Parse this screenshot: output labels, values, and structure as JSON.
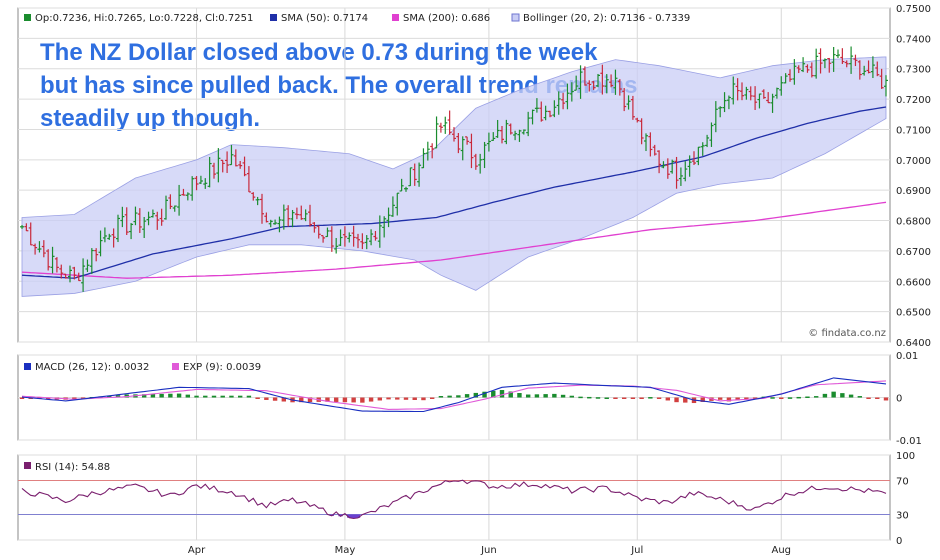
{
  "title": "The NZ Dollar closed above 0.73 during the week but has since pulled back. The overall trend remains steadily up though.",
  "watermark": "© findata.co.nz",
  "legend": {
    "price": "Op:0.7236, Hi:0.7265, Lo:0.7228, Cl:0.7251",
    "sma50": "SMA (50): 0.7174",
    "sma200": "SMA (200): 0.686",
    "bollinger": "Bollinger (20, 2): 0.7136 - 0.7339",
    "macd": "MACD (26, 12): 0.0032",
    "exp": "EXP (9): 0.0039",
    "rsi": "RSI (14): 54.88"
  },
  "colors": {
    "up": "#1a8c2e",
    "down": "#c8283a",
    "sma50": "#1f2fa8",
    "sma200": "#e040d0",
    "band": "#c9cdf5",
    "bandEdge": "#9aa0e4",
    "macd": "#1a2fc0",
    "exp": "#e05ad8",
    "histPos": "#1a8c2e",
    "histNeg": "#d24040",
    "rsi": "#7a1f6e",
    "title": "#2f6fe0"
  },
  "chart_data": [
    {
      "type": "line",
      "name": "price",
      "x_ticks": [
        "Apr",
        "May",
        "Jun",
        "Jul",
        "Aug"
      ],
      "y_ticks": [
        "0.7500",
        "0.7400",
        "0.7300",
        "0.7200",
        "0.7100",
        "0.7000",
        "0.6900",
        "0.6800",
        "0.6700",
        "0.6600",
        "0.6500",
        "0.6400"
      ],
      "ylim": [
        0.64,
        0.75
      ],
      "close_anchors": [
        [
          0,
          0.678
        ],
        [
          8,
          0.664
        ],
        [
          12,
          0.661
        ],
        [
          20,
          0.677
        ],
        [
          32,
          0.682
        ],
        [
          38,
          0.691
        ],
        [
          48,
          0.701
        ],
        [
          58,
          0.678
        ],
        [
          62,
          0.683
        ],
        [
          72,
          0.673
        ],
        [
          78,
          0.671
        ],
        [
          88,
          0.692
        ],
        [
          96,
          0.711
        ],
        [
          104,
          0.701
        ],
        [
          112,
          0.711
        ],
        [
          120,
          0.716
        ],
        [
          128,
          0.727
        ],
        [
          136,
          0.727
        ],
        [
          144,
          0.702
        ],
        [
          150,
          0.696
        ],
        [
          156,
          0.705
        ],
        [
          162,
          0.723
        ],
        [
          170,
          0.718
        ],
        [
          178,
          0.729
        ],
        [
          186,
          0.733
        ],
        [
          192,
          0.731
        ],
        [
          198,
          0.725
        ]
      ],
      "sma50_anchors": [
        [
          0,
          0.662
        ],
        [
          12,
          0.661
        ],
        [
          30,
          0.669
        ],
        [
          48,
          0.674
        ],
        [
          60,
          0.678
        ],
        [
          80,
          0.679
        ],
        [
          95,
          0.681
        ],
        [
          108,
          0.686
        ],
        [
          122,
          0.691
        ],
        [
          140,
          0.696
        ],
        [
          156,
          0.701
        ],
        [
          168,
          0.707
        ],
        [
          180,
          0.712
        ],
        [
          192,
          0.716
        ],
        [
          198,
          0.7174
        ]
      ],
      "sma200_anchors": [
        [
          0,
          0.663
        ],
        [
          24,
          0.661
        ],
        [
          48,
          0.662
        ],
        [
          72,
          0.664
        ],
        [
          96,
          0.667
        ],
        [
          120,
          0.672
        ],
        [
          144,
          0.677
        ],
        [
          168,
          0.68
        ],
        [
          198,
          0.686
        ]
      ],
      "bb_upper_anchors": [
        [
          0,
          0.681
        ],
        [
          12,
          0.682
        ],
        [
          26,
          0.694
        ],
        [
          40,
          0.7
        ],
        [
          48,
          0.705
        ],
        [
          60,
          0.704
        ],
        [
          75,
          0.702
        ],
        [
          85,
          0.697
        ],
        [
          94,
          0.703
        ],
        [
          104,
          0.717
        ],
        [
          114,
          0.723
        ],
        [
          126,
          0.729
        ],
        [
          136,
          0.733
        ],
        [
          146,
          0.731
        ],
        [
          160,
          0.727
        ],
        [
          172,
          0.731
        ],
        [
          184,
          0.733
        ],
        [
          198,
          0.7339
        ]
      ],
      "bb_lower_anchors": [
        [
          0,
          0.655
        ],
        [
          12,
          0.656
        ],
        [
          26,
          0.66
        ],
        [
          40,
          0.668
        ],
        [
          52,
          0.672
        ],
        [
          64,
          0.672
        ],
        [
          78,
          0.67
        ],
        [
          90,
          0.667
        ],
        [
          96,
          0.662
        ],
        [
          104,
          0.657
        ],
        [
          116,
          0.668
        ],
        [
          128,
          0.674
        ],
        [
          140,
          0.681
        ],
        [
          150,
          0.689
        ],
        [
          160,
          0.692
        ],
        [
          172,
          0.694
        ],
        [
          184,
          0.702
        ],
        [
          198,
          0.7136
        ]
      ]
    },
    {
      "type": "line",
      "name": "macd",
      "y_ticks": [
        "0.01",
        "0",
        "-0.01"
      ],
      "ylim": [
        -0.01,
        0.01
      ],
      "macd_anchors": [
        [
          0,
          0.0001
        ],
        [
          10,
          -0.0008
        ],
        [
          20,
          0.0004
        ],
        [
          36,
          0.0024
        ],
        [
          52,
          0.0021
        ],
        [
          62,
          -0.0006
        ],
        [
          78,
          -0.0032
        ],
        [
          92,
          -0.0033
        ],
        [
          100,
          -0.0012
        ],
        [
          110,
          0.0024
        ],
        [
          122,
          0.0034
        ],
        [
          134,
          0.0028
        ],
        [
          144,
          0.0024
        ],
        [
          154,
          -0.0006
        ],
        [
          162,
          -0.0016
        ],
        [
          174,
          0.0008
        ],
        [
          186,
          0.0046
        ],
        [
          198,
          0.0032
        ]
      ],
      "exp_anchors": [
        [
          0,
          0.0003
        ],
        [
          12,
          -0.0004
        ],
        [
          24,
          0.0002
        ],
        [
          40,
          0.0019
        ],
        [
          56,
          0.0016
        ],
        [
          70,
          -0.0009
        ],
        [
          84,
          -0.0028
        ],
        [
          96,
          -0.0026
        ],
        [
          106,
          -0.0004
        ],
        [
          116,
          0.0022
        ],
        [
          128,
          0.0029
        ],
        [
          140,
          0.0027
        ],
        [
          150,
          0.0017
        ],
        [
          160,
          -0.0008
        ],
        [
          170,
          -0.0002
        ],
        [
          182,
          0.003
        ],
        [
          198,
          0.0039
        ]
      ]
    },
    {
      "type": "line",
      "name": "rsi",
      "y_ticks": [
        "100",
        "70",
        "30",
        "0"
      ],
      "ylim": [
        0,
        100
      ],
      "rsi_anchors": [
        [
          0,
          58
        ],
        [
          10,
          46
        ],
        [
          16,
          55
        ],
        [
          26,
          63
        ],
        [
          34,
          52
        ],
        [
          40,
          64
        ],
        [
          48,
          57
        ],
        [
          56,
          40
        ],
        [
          62,
          47
        ],
        [
          72,
          30
        ],
        [
          78,
          28
        ],
        [
          86,
          45
        ],
        [
          94,
          62
        ],
        [
          100,
          72
        ],
        [
          108,
          63
        ],
        [
          118,
          66
        ],
        [
          126,
          58
        ],
        [
          134,
          61
        ],
        [
          142,
          48
        ],
        [
          148,
          44
        ],
        [
          154,
          55
        ],
        [
          160,
          48
        ],
        [
          168,
          36
        ],
        [
          176,
          55
        ],
        [
          184,
          63
        ],
        [
          190,
          60
        ],
        [
          198,
          54.88
        ]
      ]
    }
  ]
}
